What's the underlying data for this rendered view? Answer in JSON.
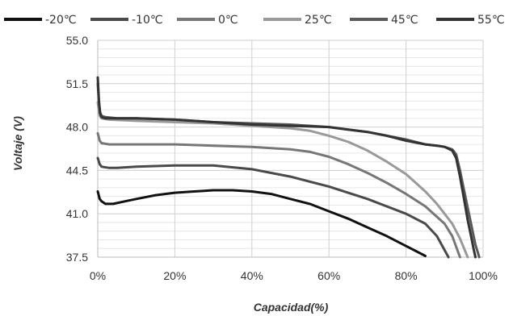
{
  "chart_data": {
    "type": "line",
    "title": "",
    "xlabel": "Capacidad(%)",
    "ylabel": "Voltaje (V)",
    "xlim": [
      0,
      100
    ],
    "ylim": [
      37.5,
      55.0
    ],
    "x_ticks": [
      0,
      20,
      40,
      60,
      80,
      100
    ],
    "x_tick_labels": [
      "0%",
      "20%",
      "40%",
      "60%",
      "80%",
      "100%"
    ],
    "y_ticks": [
      37.5,
      41.0,
      44.5,
      48.0,
      51.5,
      55.0
    ],
    "y_tick_labels": [
      "37.5",
      "41.0",
      "44.5",
      "48.0",
      "51.5",
      "55.0"
    ],
    "grid": true,
    "legend_position": "top",
    "series": [
      {
        "name": "-20℃",
        "color": "#111111",
        "x": [
          0,
          0.5,
          1,
          2,
          4,
          7,
          10,
          15,
          20,
          25,
          30,
          35,
          40,
          45,
          50,
          55,
          60,
          65,
          70,
          75,
          80,
          85
        ],
        "y": [
          42.8,
          42.2,
          42.0,
          41.8,
          41.8,
          42.0,
          42.2,
          42.5,
          42.7,
          42.8,
          42.9,
          42.9,
          42.8,
          42.6,
          42.2,
          41.8,
          41.2,
          40.6,
          39.9,
          39.2,
          38.4,
          37.6
        ]
      },
      {
        "name": "-10℃",
        "color": "#4a4a4a",
        "x": [
          0,
          0.5,
          1,
          3,
          5,
          10,
          20,
          30,
          40,
          50,
          60,
          70,
          80,
          85,
          88,
          91
        ],
        "y": [
          45.5,
          45.0,
          44.8,
          44.7,
          44.7,
          44.8,
          44.9,
          44.9,
          44.6,
          44.0,
          43.2,
          42.2,
          41.0,
          40.2,
          39.2,
          37.5
        ]
      },
      {
        "name": "0℃",
        "color": "#777777",
        "x": [
          0,
          0.5,
          1,
          3,
          10,
          20,
          30,
          40,
          50,
          55,
          60,
          65,
          70,
          75,
          80,
          85,
          90,
          92,
          94
        ],
        "y": [
          47.5,
          46.9,
          46.7,
          46.6,
          46.6,
          46.6,
          46.5,
          46.4,
          46.2,
          46.0,
          45.6,
          45.0,
          44.3,
          43.5,
          42.6,
          41.6,
          40.2,
          39.2,
          37.5
        ]
      },
      {
        "name": "25℃",
        "color": "#999999",
        "x": [
          0,
          0.5,
          1,
          3,
          10,
          20,
          30,
          40,
          50,
          55,
          60,
          65,
          70,
          75,
          80,
          85,
          88,
          90,
          92,
          94,
          96
        ],
        "y": [
          50.0,
          48.9,
          48.7,
          48.6,
          48.5,
          48.4,
          48.3,
          48.1,
          47.9,
          47.7,
          47.3,
          46.8,
          46.1,
          45.2,
          44.2,
          42.8,
          41.8,
          41.0,
          40.2,
          39.0,
          37.5
        ]
      },
      {
        "name": "45℃",
        "color": "#5a5a5a",
        "x": [
          0,
          0.3,
          0.6,
          1,
          2,
          5,
          10,
          20,
          30,
          40,
          50,
          60,
          65,
          70,
          75,
          80,
          85,
          88,
          90,
          92,
          93,
          94,
          95,
          96,
          97,
          98,
          99
        ],
        "y": [
          51.5,
          50.0,
          49.2,
          48.9,
          48.8,
          48.7,
          48.7,
          48.6,
          48.4,
          48.3,
          48.2,
          48.0,
          47.8,
          47.6,
          47.3,
          47.0,
          46.6,
          46.5,
          46.4,
          46.2,
          45.8,
          44.5,
          43.0,
          41.5,
          40.0,
          38.5,
          37.5
        ]
      },
      {
        "name": "55℃",
        "color": "#333333",
        "x": [
          0,
          0.3,
          0.6,
          1,
          2,
          5,
          10,
          20,
          30,
          40,
          50,
          60,
          65,
          70,
          75,
          80,
          85,
          88,
          90,
          92,
          93,
          94,
          95,
          96,
          97,
          97.5,
          98
        ],
        "y": [
          52.0,
          50.2,
          49.1,
          48.8,
          48.7,
          48.7,
          48.7,
          48.6,
          48.4,
          48.2,
          48.1,
          48.0,
          47.8,
          47.6,
          47.3,
          46.9,
          46.6,
          46.5,
          46.4,
          46.1,
          45.5,
          44.0,
          42.3,
          40.5,
          39.0,
          38.2,
          37.5
        ]
      }
    ]
  }
}
